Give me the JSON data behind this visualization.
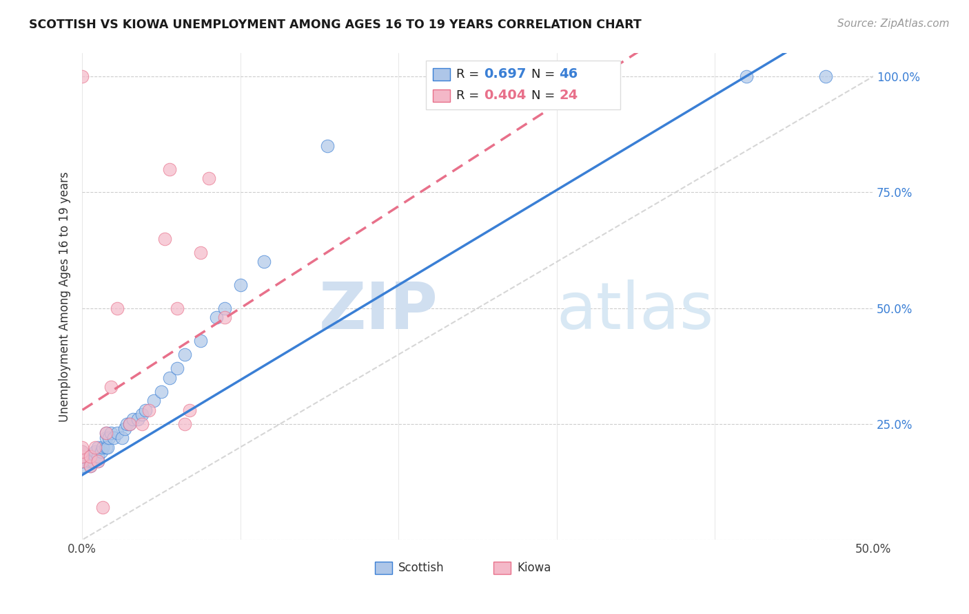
{
  "title": "SCOTTISH VS KIOWA UNEMPLOYMENT AMONG AGES 16 TO 19 YEARS CORRELATION CHART",
  "source": "Source: ZipAtlas.com",
  "ylabel": "Unemployment Among Ages 16 to 19 years",
  "xlim": [
    0.0,
    0.5
  ],
  "ylim": [
    0.0,
    1.05
  ],
  "scottish_color": "#aec6e8",
  "kiowa_color": "#f4b8c8",
  "scottish_line_color": "#3a7fd5",
  "kiowa_line_color": "#e8708a",
  "diagonal_color": "#cccccc",
  "watermark_zip": "ZIP",
  "watermark_atlas": "atlas",
  "scottish_x": [
    0.0,
    0.0,
    0.0,
    0.0,
    0.0,
    0.0,
    0.005,
    0.005,
    0.005,
    0.007,
    0.008,
    0.008,
    0.01,
    0.01,
    0.01,
    0.012,
    0.013,
    0.015,
    0.015,
    0.015,
    0.016,
    0.017,
    0.018,
    0.02,
    0.022,
    0.025,
    0.027,
    0.028,
    0.03,
    0.032,
    0.035,
    0.038,
    0.04,
    0.045,
    0.05,
    0.055,
    0.06,
    0.065,
    0.075,
    0.085,
    0.09,
    0.1,
    0.115,
    0.155,
    0.42,
    0.47
  ],
  "scottish_y": [
    0.16,
    0.17,
    0.17,
    0.18,
    0.18,
    0.19,
    0.16,
    0.17,
    0.18,
    0.17,
    0.18,
    0.19,
    0.17,
    0.18,
    0.2,
    0.19,
    0.2,
    0.2,
    0.22,
    0.23,
    0.2,
    0.22,
    0.23,
    0.22,
    0.23,
    0.22,
    0.24,
    0.25,
    0.25,
    0.26,
    0.26,
    0.27,
    0.28,
    0.3,
    0.32,
    0.35,
    0.37,
    0.4,
    0.43,
    0.48,
    0.5,
    0.55,
    0.6,
    0.85,
    1.0,
    1.0
  ],
  "kiowa_x": [
    0.0,
    0.0,
    0.0,
    0.0,
    0.0,
    0.005,
    0.005,
    0.008,
    0.01,
    0.013,
    0.015,
    0.018,
    0.022,
    0.03,
    0.038,
    0.042,
    0.052,
    0.055,
    0.06,
    0.065,
    0.068,
    0.075,
    0.08,
    0.09
  ],
  "kiowa_y": [
    0.17,
    0.18,
    0.19,
    0.2,
    1.0,
    0.16,
    0.18,
    0.2,
    0.17,
    0.07,
    0.23,
    0.33,
    0.5,
    0.25,
    0.25,
    0.28,
    0.65,
    0.8,
    0.5,
    0.25,
    0.28,
    0.62,
    0.78,
    0.48
  ],
  "scottish_slope": 2.05,
  "scottish_intercept": 0.14,
  "kiowa_slope": 2.2,
  "kiowa_intercept": 0.28
}
